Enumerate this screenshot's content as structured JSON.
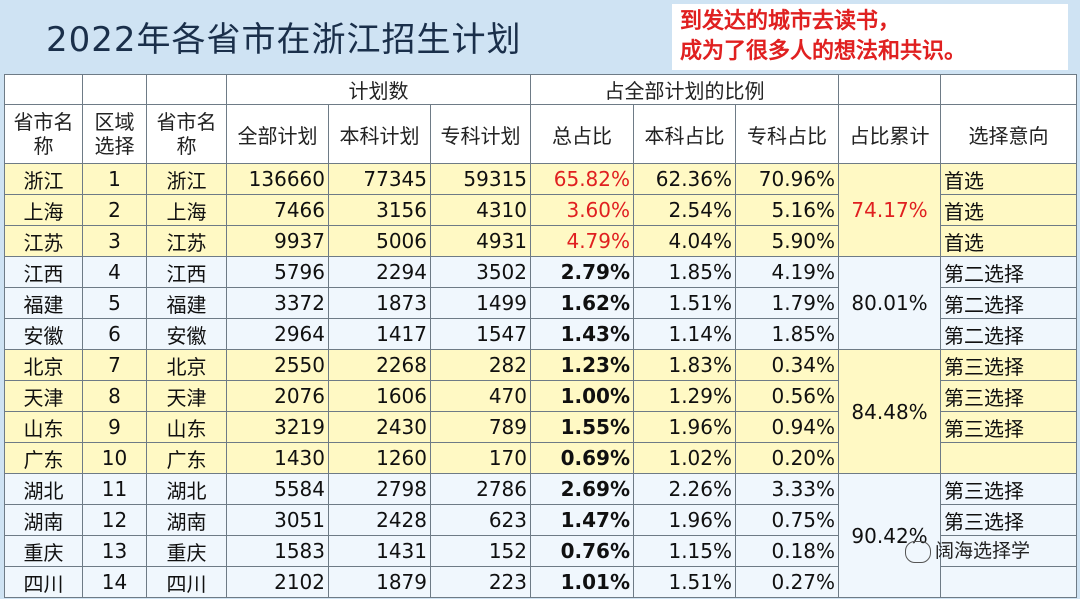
{
  "title": "2022年各省市在浙江招生计划",
  "note": [
    "到发达的城市去读书，",
    "成为了很多人的想法和共识。"
  ],
  "headers": {
    "group_plan": "计划数",
    "group_ratio": "占全部计划的比例",
    "col_province": "省市名称",
    "col_region": "区域选择",
    "col_province2": "省市名称",
    "col_total": "全部计划",
    "col_bachelor": "本科计划",
    "col_college": "专科计划",
    "col_total_ratio": "总占比",
    "col_bachelor_ratio": "本科占比",
    "col_college_ratio": "专科占比",
    "col_cumulative": "占比累计",
    "col_intention": "选择意向"
  },
  "rows": [
    {
      "name": "浙江",
      "idx": "1",
      "name2": "浙江",
      "total": "136660",
      "bachelor": "77345",
      "college": "59315",
      "ratio": "65.82%",
      "b_ratio": "62.36%",
      "c_ratio": "70.96%",
      "intent": "首选"
    },
    {
      "name": "上海",
      "idx": "2",
      "name2": "上海",
      "total": "7466",
      "bachelor": "3156",
      "college": "4310",
      "ratio": "3.60%",
      "b_ratio": "2.54%",
      "c_ratio": "5.16%",
      "intent": "首选"
    },
    {
      "name": "江苏",
      "idx": "3",
      "name2": "江苏",
      "total": "9937",
      "bachelor": "5006",
      "college": "4931",
      "ratio": "4.79%",
      "b_ratio": "4.04%",
      "c_ratio": "5.90%",
      "intent": "首选"
    },
    {
      "name": "江西",
      "idx": "4",
      "name2": "江西",
      "total": "5796",
      "bachelor": "2294",
      "college": "3502",
      "ratio": "2.79%",
      "b_ratio": "1.85%",
      "c_ratio": "4.19%",
      "intent": "第二选择"
    },
    {
      "name": "福建",
      "idx": "5",
      "name2": "福建",
      "total": "3372",
      "bachelor": "1873",
      "college": "1499",
      "ratio": "1.62%",
      "b_ratio": "1.51%",
      "c_ratio": "1.79%",
      "intent": "第二选择"
    },
    {
      "name": "安徽",
      "idx": "6",
      "name2": "安徽",
      "total": "2964",
      "bachelor": "1417",
      "college": "1547",
      "ratio": "1.43%",
      "b_ratio": "1.14%",
      "c_ratio": "1.85%",
      "intent": "第二选择"
    },
    {
      "name": "北京",
      "idx": "7",
      "name2": "北京",
      "total": "2550",
      "bachelor": "2268",
      "college": "282",
      "ratio": "1.23%",
      "b_ratio": "1.83%",
      "c_ratio": "0.34%",
      "intent": "第三选择"
    },
    {
      "name": "天津",
      "idx": "8",
      "name2": "天津",
      "total": "2076",
      "bachelor": "1606",
      "college": "470",
      "ratio": "1.00%",
      "b_ratio": "1.29%",
      "c_ratio": "0.56%",
      "intent": "第三选择"
    },
    {
      "name": "山东",
      "idx": "9",
      "name2": "山东",
      "total": "3219",
      "bachelor": "2430",
      "college": "789",
      "ratio": "1.55%",
      "b_ratio": "1.96%",
      "c_ratio": "0.94%",
      "intent": "第三选择"
    },
    {
      "name": "广东",
      "idx": "10",
      "name2": "广东",
      "total": "1430",
      "bachelor": "1260",
      "college": "170",
      "ratio": "0.69%",
      "b_ratio": "1.02%",
      "c_ratio": "0.20%",
      "intent": ""
    },
    {
      "name": "湖北",
      "idx": "11",
      "name2": "湖北",
      "total": "5584",
      "bachelor": "2798",
      "college": "2786",
      "ratio": "2.69%",
      "b_ratio": "2.26%",
      "c_ratio": "3.33%",
      "intent": "第三选择"
    },
    {
      "name": "湖南",
      "idx": "12",
      "name2": "湖南",
      "total": "3051",
      "bachelor": "2428",
      "college": "623",
      "ratio": "1.47%",
      "b_ratio": "1.96%",
      "c_ratio": "0.75%",
      "intent": "第三选择"
    },
    {
      "name": "重庆",
      "idx": "13",
      "name2": "重庆",
      "total": "1583",
      "bachelor": "1431",
      "college": "152",
      "ratio": "0.76%",
      "b_ratio": "1.15%",
      "c_ratio": "0.18%",
      "intent": ""
    },
    {
      "name": "四川",
      "idx": "14",
      "name2": "四川",
      "total": "2102",
      "bachelor": "1879",
      "college": "223",
      "ratio": "1.01%",
      "b_ratio": "1.51%",
      "c_ratio": "0.27%",
      "intent": ""
    }
  ],
  "cumulative": [
    "74.17%",
    "80.01%",
    "84.48%",
    "90.42%"
  ],
  "watermark": "阔海选择学"
}
